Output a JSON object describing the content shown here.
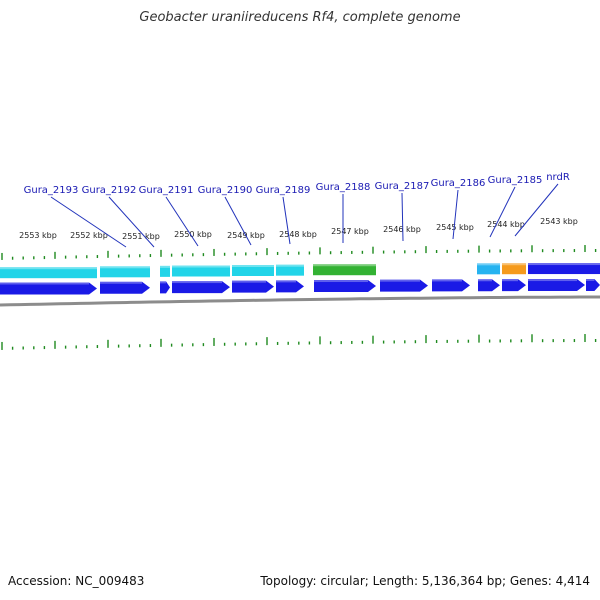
{
  "title": "Geobacter uraniireducens Rf4, complete genome",
  "footer": {
    "accession": "Accession: NC_009483",
    "topology": "Topology: circular; Length: 5,136,364 bp; Genes: 4,414"
  },
  "colors": {
    "cds_forward": "#1a1ae6",
    "cds_feature_cyan": "#22d4e8",
    "cds_feature_green": "#33b233",
    "cds_feature_orange": "#f59a1c",
    "cds_feature_lightblue": "#26b3f0",
    "label": "#1a1ab3",
    "tick": "#1f8a1f",
    "backbone": "#8c8c8c"
  },
  "scale_labels": [
    "2553 kbp",
    "2552 kbp",
    "2551 kbp",
    "2550 kbp",
    "2549 kbp",
    "2548 kbp",
    "2547 kbp",
    "2546 kbp",
    "2545 kbp",
    "2544 kbp",
    "2543 kbp"
  ],
  "gene_labels": [
    "Gura_2193",
    "Gura_2192",
    "Gura_2191",
    "Gura_2190",
    "Gura_2189",
    "Gura_2188",
    "Gura_2187",
    "Gura_2186",
    "Gura_2185",
    "nrdR"
  ]
}
